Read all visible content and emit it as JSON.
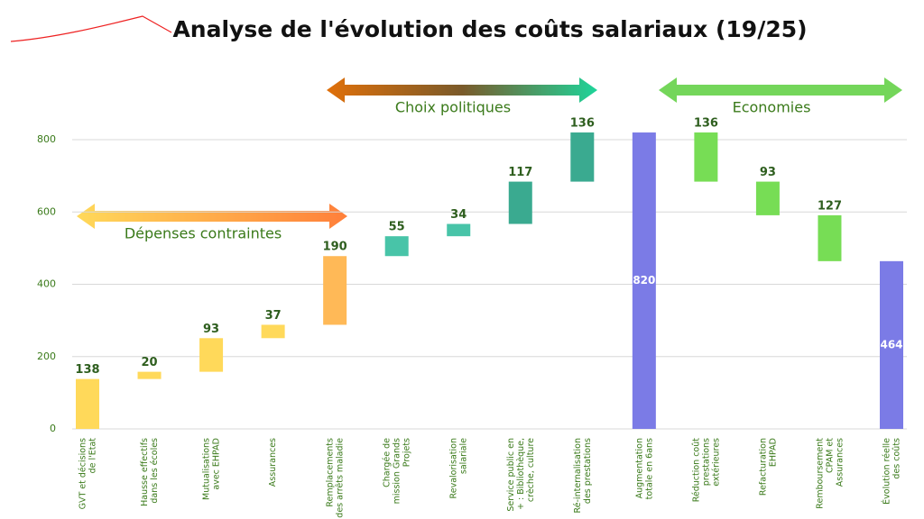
{
  "chart_data": {
    "type": "waterfall",
    "title": "Analyse de l'évolution des coûts salariaux (19/25)",
    "categories": [
      "GVT et décisions\nde l'Etat",
      "Hausse effectifs\ndans les écoles",
      "Mutualisations\navec EHPAD",
      "Assurances",
      "Remplacements\ndes arrêts maladie",
      "Chargée de\nmission Grands\nProjets",
      "Revalorisation\nsalariale",
      "Service public en\n+ : Bibliothèque,\ncrèche, culture",
      "Ré-internalisation\ndes prestations",
      "Augmentation\ntotale en 6ans",
      "Réduction coût\nprestations\nextérieures",
      "Refacturation\nEHPAD",
      "Remboursement\nCPAM et\nAssurances",
      "Évolution réelle\ndes coûts"
    ],
    "values": [
      138,
      20,
      93,
      37,
      190,
      55,
      34,
      117,
      136,
      820,
      136,
      93,
      127,
      464
    ],
    "measures": [
      "increase",
      "increase",
      "increase",
      "increase",
      "increase",
      "increase",
      "increase",
      "increase",
      "increase",
      "total",
      "decrease",
      "decrease",
      "decrease",
      "total"
    ],
    "colors": [
      "#ffd95a",
      "#ffd95a",
      "#ffd95a",
      "#ffd95a",
      "#ffb957",
      "#48c4a8",
      "#48c4a8",
      "#3aaa90",
      "#3aaa90",
      "#7b7be6",
      "#77dd55",
      "#77dd55",
      "#77dd55",
      "#7b7be6"
    ],
    "ylim": [
      0,
      840
    ],
    "yticks": [
      0,
      200,
      400,
      600,
      800
    ],
    "grid": true,
    "annotations": [
      "Dépenses contraintes",
      "Choix politiques",
      "Economies"
    ]
  }
}
